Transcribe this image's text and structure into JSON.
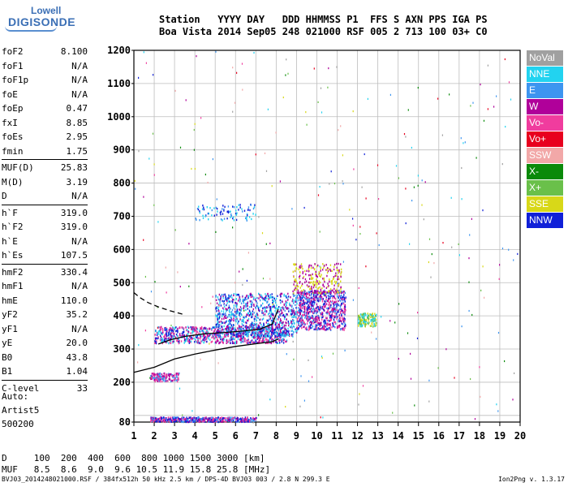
{
  "logo": {
    "line1": "Lowell",
    "line2": "DIGISONDE"
  },
  "header": {
    "line1": "Station   YYYY DAY   DDD HHMMSS P1  FFS S AXN PPS IGA PS",
    "line2": "Boa Vista 2014 Sep05 248 021000 RSF 005 2 713 100 03+ C0"
  },
  "params": [
    [
      {
        "k": "foF2",
        "v": "8.100"
      },
      {
        "k": "foF1",
        "v": "N/A"
      },
      {
        "k": "foF1p",
        "v": "N/A"
      },
      {
        "k": "foE",
        "v": "N/A"
      },
      {
        "k": "foEp",
        "v": "0.47"
      },
      {
        "k": "fxI",
        "v": "8.85"
      },
      {
        "k": "foEs",
        "v": "2.95"
      },
      {
        "k": "fmin",
        "v": "1.75"
      }
    ],
    [
      {
        "k": "MUF(D)",
        "v": "25.83"
      },
      {
        "k": "M(D)",
        "v": "3.19"
      },
      {
        "k": "D",
        "v": "N/A"
      }
    ],
    [
      {
        "k": "h`F",
        "v": "319.0"
      },
      {
        "k": "h`F2",
        "v": "319.0"
      },
      {
        "k": "h`E",
        "v": "N/A"
      },
      {
        "k": "h`Es",
        "v": "107.5"
      }
    ],
    [
      {
        "k": "hmF2",
        "v": "330.4"
      },
      {
        "k": "hmF1",
        "v": "N/A"
      },
      {
        "k": "hmE",
        "v": "110.0"
      },
      {
        "k": "yF2",
        "v": "35.2"
      },
      {
        "k": "yF1",
        "v": "N/A"
      },
      {
        "k": "yE",
        "v": "20.0"
      },
      {
        "k": "B0",
        "v": "43.8"
      },
      {
        "k": "B1",
        "v": "1.04"
      }
    ],
    [
      {
        "k": "C-level",
        "v": "33"
      }
    ]
  ],
  "auto": {
    "line1": "Auto:",
    "line2": "Artist5",
    "line3": "500200"
  },
  "legend": [
    {
      "label": "NoVal",
      "color": "#a0a0a0"
    },
    {
      "label": "NNE",
      "color": "#22d3f0"
    },
    {
      "label": "E",
      "color": "#3d95f0"
    },
    {
      "label": "W",
      "color": "#b0009a"
    },
    {
      "label": "Vo-",
      "color": "#f03c9e"
    },
    {
      "label": "Vo+",
      "color": "#e8001e"
    },
    {
      "label": "SSW",
      "color": "#f2a8a8"
    },
    {
      "label": "X-",
      "color": "#0a8a0a"
    },
    {
      "label": "X+",
      "color": "#6ac04a"
    },
    {
      "label": "SSE",
      "color": "#d8d818"
    },
    {
      "label": "NNW",
      "color": "#1020d8"
    }
  ],
  "bottom": {
    "line1": "D     100  200  400  600  800 1000 1500 3000 [km]",
    "line2": "MUF   8.5  8.6  9.0  9.6 10.5 11.9 15.8 25.8 [MHz]"
  },
  "footer": {
    "left": "BVJ03_2014248021000.RSF / 384fx512h 50 kHz 2.5 km / DPS-4D BVJ03 003 / 2.8 N 299.3 E",
    "right": "Ion2Png v. 1.3.17"
  },
  "chart_data": {
    "type": "scatter",
    "xlim": [
      1,
      20
    ],
    "ylim": [
      80,
      1200
    ],
    "x_ticks": [
      1,
      2,
      3,
      4,
      5,
      6,
      7,
      8,
      9,
      10,
      11,
      12,
      13,
      14,
      15,
      16,
      17,
      18,
      19,
      20
    ],
    "y_ticks": [
      80,
      200,
      300,
      400,
      500,
      600,
      700,
      800,
      900,
      1000,
      1100,
      1200
    ],
    "grid": true,
    "echo_clusters": [
      {
        "f": [
          2.0,
          8.5
        ],
        "h": [
          320,
          370
        ],
        "colors": [
          "#f03c9e",
          "#1020d8",
          "#b0009a",
          "#22d3f0"
        ],
        "n": 900
      },
      {
        "f": [
          5.0,
          9.0
        ],
        "h": [
          340,
          470
        ],
        "colors": [
          "#b0009a",
          "#1020d8",
          "#3d95f0",
          "#22d3f0"
        ],
        "n": 900
      },
      {
        "f": [
          9.0,
          11.4
        ],
        "h": [
          360,
          480
        ],
        "colors": [
          "#b0009a",
          "#f03c9e",
          "#3d95f0",
          "#1020d8"
        ],
        "n": 800
      },
      {
        "f": [
          8.8,
          11.2
        ],
        "h": [
          470,
          560
        ],
        "colors": [
          "#d8d818",
          "#b0009a"
        ],
        "n": 250
      },
      {
        "f": [
          12.0,
          12.9
        ],
        "h": [
          370,
          410
        ],
        "colors": [
          "#22d3f0",
          "#d8d818",
          "#6ac04a"
        ],
        "n": 150
      },
      {
        "f": [
          1.8,
          7.0
        ],
        "h": [
          83,
          97
        ],
        "colors": [
          "#b0009a",
          "#f03c9e",
          "#3d95f0",
          "#1020d8"
        ],
        "n": 500
      },
      {
        "f": [
          1.8,
          3.2
        ],
        "h": [
          205,
          230
        ],
        "colors": [
          "#b0009a",
          "#f03c9e",
          "#3d95f0"
        ],
        "n": 150
      },
      {
        "f": [
          4.0,
          7.0
        ],
        "h": [
          690,
          740
        ],
        "colors": [
          "#1020d8",
          "#22d3f0",
          "#3d95f0"
        ],
        "n": 90
      }
    ],
    "noise_points": 260,
    "trace_profile": {
      "f": [
        1.0,
        2.0,
        3.0,
        4.0,
        5.0,
        6.0,
        7.0,
        7.8,
        8.1
      ],
      "h": [
        230,
        245,
        270,
        285,
        297,
        308,
        316,
        322,
        330
      ]
    },
    "trace_virtual": {
      "f": [
        2.2,
        2.8,
        3.5,
        4.5,
        5.5,
        6.5,
        7.2,
        7.8,
        8.1
      ],
      "h": [
        315,
        328,
        338,
        346,
        350,
        355,
        360,
        375,
        420
      ]
    },
    "trace_dashed": {
      "f": [
        1.0,
        1.3,
        1.7,
        2.2,
        2.8,
        3.4
      ],
      "h": [
        470,
        455,
        440,
        427,
        415,
        405
      ]
    }
  }
}
